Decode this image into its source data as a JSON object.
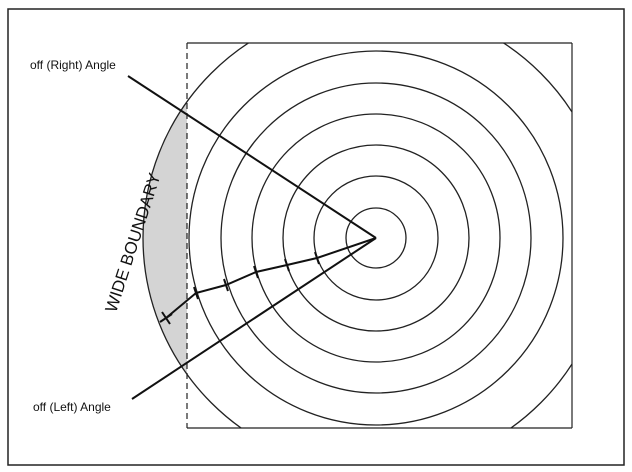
{
  "labels": {
    "right_angle": "off (Right) Angle",
    "left_angle": "off (Left) Angle",
    "boundary": "WIDE BOUNDARY"
  }
}
